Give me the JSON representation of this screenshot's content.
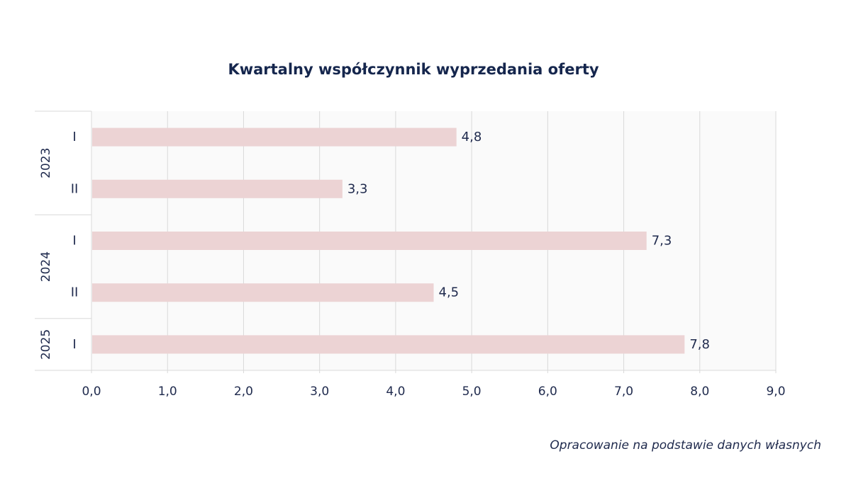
{
  "chart_data": {
    "type": "bar",
    "orientation": "horizontal",
    "title": "Kwartalny współczynnik wyprzedania oferty",
    "source_note": "Opracowanie na podstawie danych własnych",
    "categories": [
      {
        "year": "2023",
        "quarter": "I"
      },
      {
        "year": "2023",
        "quarter": "II"
      },
      {
        "year": "2024",
        "quarter": "I"
      },
      {
        "year": "2024",
        "quarter": "II"
      },
      {
        "year": "2025",
        "quarter": "I"
      }
    ],
    "values": [
      4.8,
      3.3,
      7.3,
      4.5,
      7.8
    ],
    "value_labels": [
      "4,8",
      "3,3",
      "7,3",
      "4,5",
      "7,8"
    ],
    "year_groups": [
      {
        "year": "2023",
        "count": 2
      },
      {
        "year": "2024",
        "count": 2
      },
      {
        "year": "2025",
        "count": 1
      }
    ],
    "xlim": [
      0,
      9
    ],
    "xticks": [
      0,
      1,
      2,
      3,
      4,
      5,
      6,
      7,
      8,
      9
    ],
    "xtick_labels": [
      "0,0",
      "1,0",
      "2,0",
      "3,0",
      "4,0",
      "5,0",
      "6,0",
      "7,0",
      "8,0",
      "9,0"
    ],
    "xlabel": "",
    "ylabel": "",
    "grid": true,
    "legend": "none",
    "colors": {
      "bar": "#ecd3d4",
      "plot_background": "#fafafa",
      "grid": "#d9d9d9",
      "text": "#1f2a4d",
      "title": "#15264d"
    }
  }
}
